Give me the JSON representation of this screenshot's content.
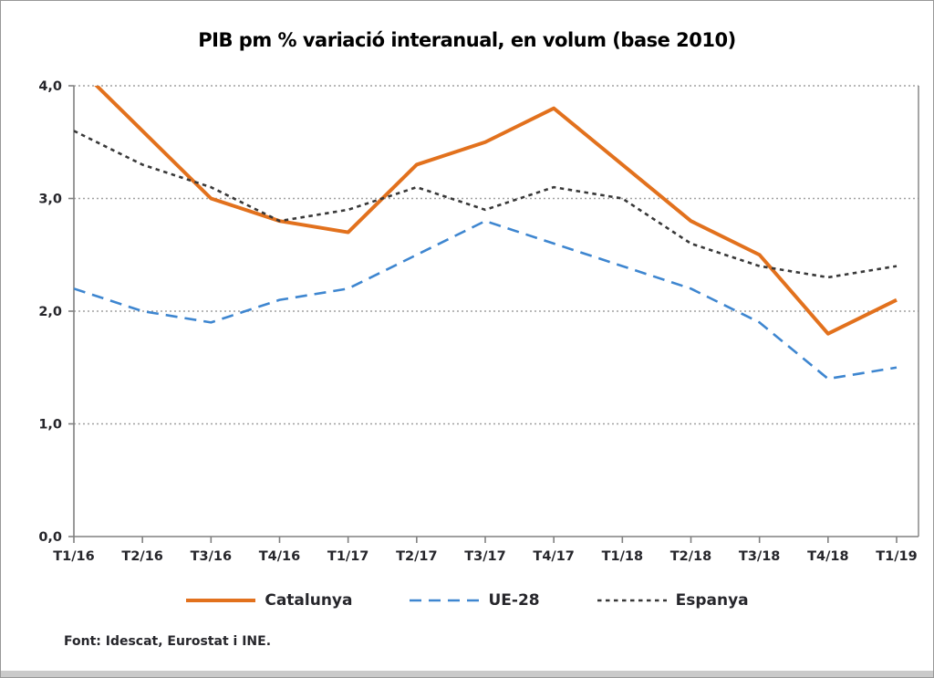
{
  "chart_data": {
    "type": "line",
    "title": "PIB pm % variació interanual, en volum (base 2010)",
    "categories": [
      "T1/16",
      "T2/16",
      "T3/16",
      "T4/16",
      "T1/17",
      "T2/17",
      "T3/17",
      "T4/17",
      "T1/18",
      "T2/18",
      "T3/18",
      "T4/18",
      "T1/19"
    ],
    "series": [
      {
        "name": "Catalunya",
        "values": [
          4.2,
          3.6,
          3.0,
          2.8,
          2.7,
          3.3,
          3.5,
          3.8,
          3.3,
          2.8,
          2.5,
          1.8,
          2.1
        ],
        "color": "#e2711d",
        "style": "solid",
        "stroke_width": 4
      },
      {
        "name": "UE-28",
        "values": [
          2.2,
          2.0,
          1.9,
          2.1,
          2.2,
          2.5,
          2.8,
          2.6,
          2.4,
          2.2,
          1.9,
          1.4,
          1.5
        ],
        "color": "#3e86d0",
        "style": "dashed",
        "stroke_width": 2.6
      },
      {
        "name": "Espanya",
        "values": [
          3.6,
          3.3,
          3.1,
          2.8,
          2.9,
          3.1,
          2.9,
          3.1,
          3.0,
          2.6,
          2.4,
          2.3,
          2.4
        ],
        "color": "#383838",
        "style": "dotted",
        "stroke_width": 2.6
      }
    ],
    "ylim": [
      0,
      4
    ],
    "y_tick_values": [
      0,
      1,
      2,
      3,
      4
    ],
    "y_tick_labels": [
      "0,0",
      "1,0",
      "2,0",
      "3,0",
      "4,0"
    ],
    "grid": "horizontal dotted gridlines",
    "legend_position": "bottom",
    "source": "Font: Idescat, Eurostat i INE.",
    "colors": {
      "gridline": "#a0a0a0",
      "axis": "#808080",
      "tick_text": "#26262b",
      "title_text": "#000000"
    }
  }
}
